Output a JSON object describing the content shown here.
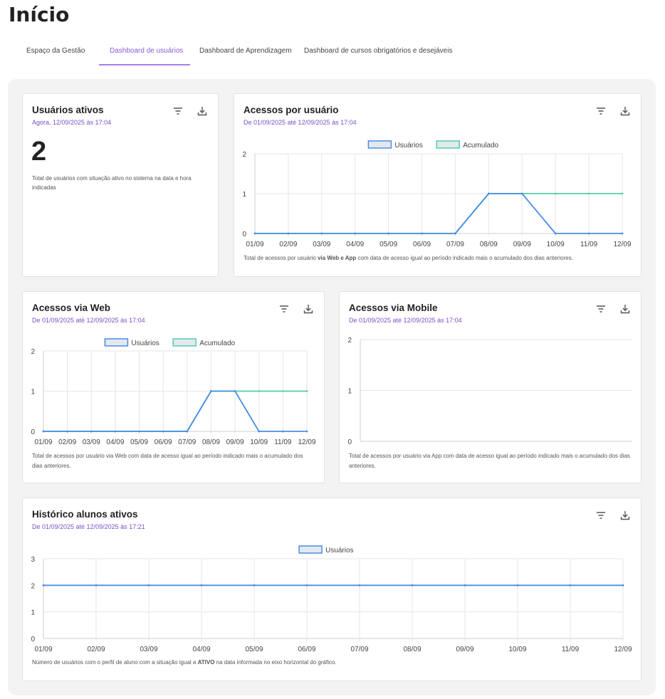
{
  "header": {
    "title": "Início"
  },
  "tabs": [
    {
      "label": "Espaço da Gestão",
      "active": false
    },
    {
      "label": "Dashboard de usuários",
      "active": true
    },
    {
      "label": "Dashboard de Aprendizagem",
      "active": false
    },
    {
      "label": "Dashboard de cursos obrigatórios e desejáveis",
      "active": false
    }
  ],
  "cards": [
    {
      "title": "Usuários ativos",
      "subtitle": "Agora, 12/09/2025 às 17:04",
      "value": 2,
      "description": "Total de usuários com situação ativo no sistema na data e hora indicadas"
    },
    {
      "title": "Acessos por usuário",
      "subtitle": "De 01/09/2025 até 12/09/2025 às 17:04",
      "chart_data": {
        "type": "line",
        "categories": [
          "01/09",
          "02/09",
          "03/09",
          "04/09",
          "05/09",
          "06/09",
          "07/09",
          "08/09",
          "09/09",
          "10/09",
          "11/09",
          "12/09"
        ],
        "series": [
          {
            "name": "Usuários",
            "color": "#4a8ee6",
            "values": [
              0,
              0,
              0,
              0,
              0,
              0,
              0,
              1,
              1,
              0,
              0,
              0
            ]
          },
          {
            "name": "Acumulado",
            "color": "#4fd1a5",
            "values": [
              0,
              0,
              0,
              0,
              0,
              0,
              0,
              1,
              1,
              1,
              1,
              1
            ]
          }
        ],
        "ylim": [
          0,
          2
        ],
        "yticks": [
          0,
          1,
          2
        ],
        "grid": true,
        "legend": "top"
      },
      "note": [
        {
          "text": "Total de acessos por usuário ",
          "bold": false
        },
        {
          "text": "via Web e App",
          "bold": true
        },
        {
          "text": " com data de acesso igual ao período indicado mais o acumulado dos dias anteriores.",
          "bold": false
        }
      ]
    },
    {
      "title": "Acessos via Web",
      "subtitle": "De 01/09/2025 até 12/09/2025 às 17:04",
      "chart_data": {
        "type": "line",
        "categories": [
          "01/09",
          "02/09",
          "03/09",
          "04/09",
          "05/09",
          "06/09",
          "07/09",
          "08/09",
          "09/09",
          "10/09",
          "11/09",
          "12/09"
        ],
        "series": [
          {
            "name": "Usuários",
            "color": "#4a8ee6",
            "values": [
              0,
              0,
              0,
              0,
              0,
              0,
              0,
              1,
              1,
              0,
              0,
              0
            ]
          },
          {
            "name": "Acumulado",
            "color": "#4fd1a5",
            "values": [
              0,
              0,
              0,
              0,
              0,
              0,
              0,
              1,
              1,
              1,
              1,
              1
            ]
          }
        ],
        "ylim": [
          0,
          2
        ],
        "yticks": [
          0,
          1,
          2
        ],
        "grid": true,
        "legend": "top"
      },
      "note": [
        {
          "text": "Total de acessos por usuário via Web com data de acesso igual ao período indicado mais o acumulado dos dias anteriores.",
          "bold": false
        }
      ]
    },
    {
      "title": "Acessos via Mobile",
      "subtitle": "De 01/09/2025 até 12/09/2025 às 17:04",
      "chart_data": {
        "type": "line",
        "ylim": [
          0,
          2
        ],
        "yticks": [
          0,
          1,
          2
        ],
        "grid": true
      },
      "note": [
        {
          "text": "Total de acessos por usuário via App com data de acesso igual ao período indicado mais o acumulado dos dias anteriores.",
          "bold": false
        }
      ]
    },
    {
      "title": "Histórico alunos ativos",
      "subtitle": "De 01/09/2025 até 12/09/2025 às 17:21",
      "chart_data": {
        "type": "line",
        "categories": [
          "01/09",
          "02/09",
          "03/09",
          "04/09",
          "05/09",
          "06/09",
          "07/09",
          "08/09",
          "09/09",
          "10/09",
          "11/09",
          "12/09"
        ],
        "series": [
          {
            "name": "Usuários",
            "color": "#4a8ee6",
            "values": [
              2,
              2,
              2,
              2,
              2,
              2,
              2,
              2,
              2,
              2,
              2,
              2
            ]
          }
        ],
        "ylim": [
          0,
          3
        ],
        "yticks": [
          0,
          1,
          2,
          3
        ],
        "grid": true,
        "legend": "top"
      },
      "note": [
        {
          "text": "Número de usuários com o perfil de aluno com a situação igual a ",
          "bold": false
        },
        {
          "text": "ATIVO",
          "bold": true
        },
        {
          "text": " na data informada no eixo horizontal do gráfico.",
          "bold": false
        }
      ]
    }
  ]
}
